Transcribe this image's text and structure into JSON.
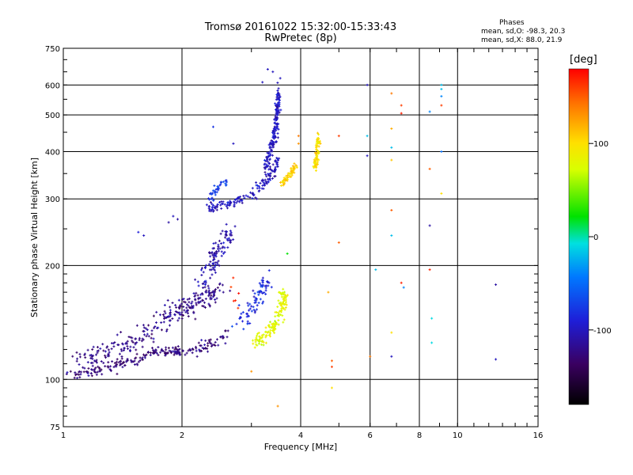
{
  "header": {
    "title_line1": "Tromsø 20161022 15:32:00-15:33:43",
    "title_line2": "RwPretec (8p)"
  },
  "stats": {
    "heading": "Phases",
    "o_line": "mean, sd,O: -98.3, 20.3",
    "x_line": "mean, sd,X:  88.0, 21.9"
  },
  "colorbar": {
    "unit_label": "[deg]",
    "ticks": [
      "100",
      "0",
      "-100"
    ],
    "tick_values": [
      100,
      0,
      -100
    ],
    "range": [
      -180,
      180
    ]
  },
  "chart_data": {
    "type": "scatter",
    "xlabel": "Frequency [MHz]",
    "ylabel": "Stationary phase Virtual Height [km]",
    "xscale": "log",
    "yscale": "log",
    "xlim": [
      1,
      16
    ],
    "ylim": [
      75,
      750
    ],
    "xticks": [
      1,
      2,
      4,
      6,
      8,
      10,
      16
    ],
    "xtick_labels": [
      "1",
      "2",
      "4",
      "6",
      "8",
      "10",
      "16"
    ],
    "x_gridlines": [
      1,
      2,
      4,
      6,
      8,
      10,
      16
    ],
    "yticks": [
      75,
      100,
      200,
      300,
      400,
      500,
      600,
      750
    ],
    "ytick_labels": [
      "75",
      "100",
      "200",
      "300",
      "400",
      "500",
      "600",
      "750"
    ],
    "y_gridlines": [
      100,
      200,
      300,
      400,
      500,
      600
    ],
    "grid": true,
    "color_encoding": "phase [deg]",
    "clusters": [
      {
        "pts": [
          [
            1.03,
            103
          ],
          [
            1.15,
            104
          ],
          [
            1.25,
            106
          ],
          [
            1.4,
            110
          ],
          [
            1.55,
            113
          ],
          [
            1.7,
            118
          ],
          [
            1.85,
            119
          ],
          [
            2.0,
            118
          ],
          [
            2.2,
            120
          ],
          [
            2.4,
            125
          ],
          [
            2.6,
            132
          ]
        ],
        "phase": -125,
        "count": 220,
        "sx": 0.03,
        "sy": 0.03
      },
      {
        "pts": [
          [
            1.1,
            112
          ],
          [
            1.3,
            118
          ],
          [
            1.5,
            126
          ],
          [
            1.7,
            138
          ],
          [
            1.9,
            150
          ],
          [
            2.1,
            158
          ],
          [
            2.3,
            165
          ],
          [
            2.5,
            172
          ]
        ],
        "phase": -120,
        "count": 260,
        "sx": 0.05,
        "sy": 0.07
      },
      {
        "pts": [
          [
            2.2,
            170
          ],
          [
            2.35,
            195
          ],
          [
            2.45,
            215
          ],
          [
            2.55,
            230
          ],
          [
            2.65,
            250
          ]
        ],
        "phase": -105,
        "count": 110,
        "sx": 0.04,
        "sy": 0.06
      },
      {
        "pts": [
          [
            2.3,
            285
          ],
          [
            2.45,
            285
          ],
          [
            2.7,
            292
          ],
          [
            2.95,
            305
          ],
          [
            3.15,
            320
          ],
          [
            3.35,
            345
          ],
          [
            3.5,
            380
          ]
        ],
        "phase": -100,
        "count": 150,
        "sx": 0.025,
        "sy": 0.03
      },
      {
        "pts": [
          [
            2.35,
            300
          ],
          [
            2.45,
            320
          ],
          [
            2.6,
            335
          ]
        ],
        "phase": -75,
        "count": 35,
        "sx": 0.02,
        "sy": 0.03
      },
      {
        "pts": [
          [
            3.25,
            360
          ],
          [
            3.38,
            410
          ],
          [
            3.45,
            460
          ],
          [
            3.5,
            520
          ],
          [
            3.53,
            580
          ]
        ],
        "phase": -98,
        "count": 170,
        "sx": 0.015,
        "sy": 0.04
      },
      {
        "pts": [
          [
            2.8,
            140
          ],
          [
            3.0,
            155
          ],
          [
            3.15,
            170
          ],
          [
            3.3,
            180
          ]
        ],
        "phase": -85,
        "count": 80,
        "sx": 0.04,
        "sy": 0.06
      },
      {
        "pts": [
          [
            3.05,
            125
          ],
          [
            3.25,
            130
          ],
          [
            3.45,
            140
          ],
          [
            3.6,
            155
          ],
          [
            3.6,
            170
          ]
        ],
        "phase": 80,
        "count": 140,
        "sx": 0.03,
        "sy": 0.04
      },
      {
        "pts": [
          [
            3.6,
            330
          ],
          [
            3.75,
            345
          ],
          [
            3.88,
            365
          ]
        ],
        "phase": 105,
        "count": 60,
        "sx": 0.015,
        "sy": 0.025
      },
      {
        "pts": [
          [
            4.35,
            360
          ],
          [
            4.4,
            400
          ],
          [
            4.45,
            440
          ]
        ],
        "phase": 100,
        "count": 90,
        "sx": 0.012,
        "sy": 0.05
      },
      {
        "pts": [
          [
            2.65,
            160
          ],
          [
            2.75,
            180
          ]
        ],
        "phase": 170,
        "count": 6,
        "sx": 0.03,
        "sy": 0.05
      }
    ],
    "scattered_points": [
      [
        5.0,
        230,
        150
      ],
      [
        5.0,
        440,
        160
      ],
      [
        4.7,
        170,
        120
      ],
      [
        4.8,
        112,
        150
      ],
      [
        4.8,
        108,
        160
      ],
      [
        4.8,
        95,
        100
      ],
      [
        5.9,
        600,
        -100
      ],
      [
        5.9,
        440,
        -20
      ],
      [
        5.9,
        390,
        -100
      ],
      [
        6.0,
        115,
        140
      ],
      [
        6.2,
        195,
        -20
      ],
      [
        6.8,
        570,
        140
      ],
      [
        6.8,
        460,
        120
      ],
      [
        6.8,
        410,
        -20
      ],
      [
        6.8,
        380,
        110
      ],
      [
        6.8,
        240,
        -20
      ],
      [
        6.8,
        133,
        100
      ],
      [
        6.8,
        115,
        -100
      ],
      [
        6.8,
        280,
        150
      ],
      [
        7.2,
        530,
        160
      ],
      [
        7.2,
        505,
        170
      ],
      [
        7.2,
        180,
        170
      ],
      [
        7.3,
        175,
        -40
      ],
      [
        8.5,
        510,
        -40
      ],
      [
        8.5,
        360,
        150
      ],
      [
        8.5,
        255,
        -110
      ],
      [
        8.5,
        195,
        170
      ],
      [
        8.6,
        145,
        -10
      ],
      [
        8.6,
        125,
        -10
      ],
      [
        9.1,
        600,
        -20
      ],
      [
        9.1,
        585,
        -20
      ],
      [
        9.1,
        560,
        -40
      ],
      [
        9.1,
        530,
        160
      ],
      [
        9.1,
        400,
        -50
      ],
      [
        9.1,
        310,
        100
      ],
      [
        12.5,
        178,
        -110
      ],
      [
        12.5,
        113,
        -100
      ],
      [
        3.5,
        85,
        130
      ],
      [
        3.0,
        105,
        130
      ],
      [
        2.4,
        465,
        -80
      ],
      [
        2.7,
        420,
        -100
      ],
      [
        1.55,
        245,
        -90
      ],
      [
        1.6,
        240,
        -100
      ],
      [
        1.85,
        260,
        -110
      ],
      [
        1.9,
        270,
        -100
      ],
      [
        1.95,
        265,
        -110
      ],
      [
        3.3,
        660,
        -100
      ],
      [
        3.4,
        650,
        -100
      ],
      [
        3.2,
        610,
        -100
      ],
      [
        3.55,
        625,
        -100
      ],
      [
        3.95,
        440,
        140
      ],
      [
        3.95,
        420,
        130
      ],
      [
        3.7,
        215,
        20
      ]
    ]
  }
}
